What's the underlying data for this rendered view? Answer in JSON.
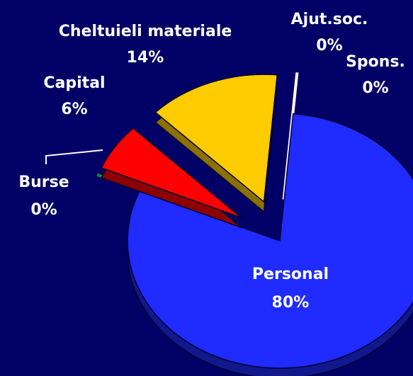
{
  "chart_data": {
    "type": "pie",
    "categories": [
      "Ajut.soc.",
      "Spons.",
      "Personal",
      "Burse",
      "Capital",
      "Cheltuieli materiale"
    ],
    "values": [
      0,
      0,
      80,
      0,
      6,
      14
    ],
    "value_labels": [
      "0%",
      "0%",
      "80%",
      "0%",
      "6%",
      "14%"
    ],
    "colors": [
      "#ff33ff",
      "#ffffff",
      "#1f2bff",
      "#1a8a1a",
      "#ff0000",
      "#ffcc00"
    ]
  }
}
